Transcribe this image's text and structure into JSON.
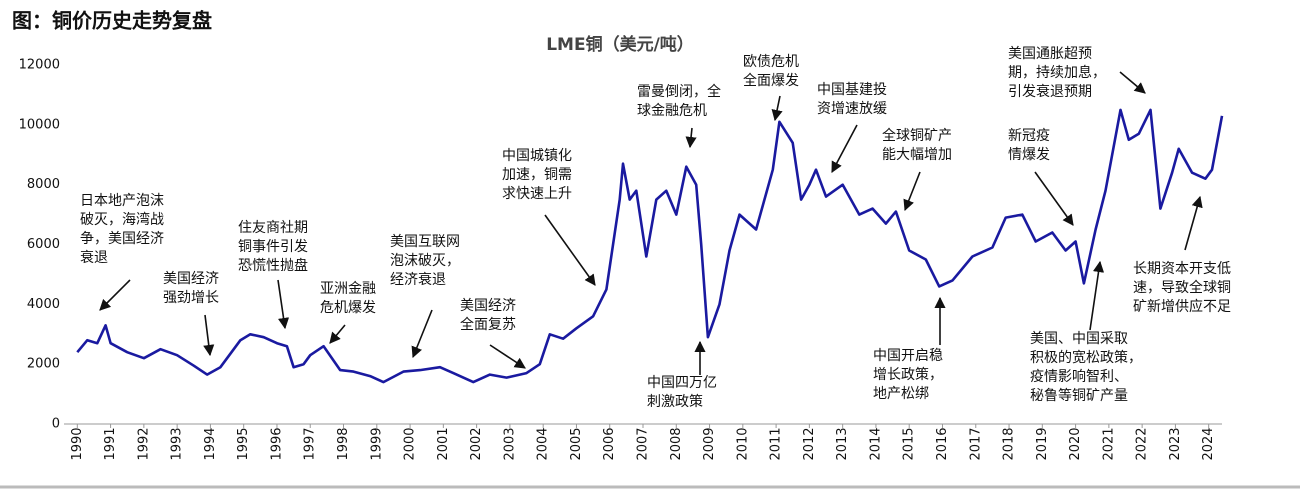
{
  "page_title": "图：铜价历史走势复盘",
  "chart_data": {
    "type": "line",
    "title": "LME铜（美元/吨）",
    "x": [
      1990.0,
      1990.3,
      1990.6,
      1990.85,
      1991.0,
      1991.5,
      1992.0,
      1992.5,
      1993.0,
      1993.5,
      1993.9,
      1994.3,
      1994.9,
      1995.2,
      1995.6,
      1996.0,
      1996.3,
      1996.5,
      1996.8,
      1997.0,
      1997.4,
      1997.9,
      1998.3,
      1998.8,
      1999.2,
      1999.8,
      2000.3,
      2000.9,
      2001.3,
      2001.9,
      2002.4,
      2002.9,
      2003.5,
      2003.9,
      2004.2,
      2004.6,
      2005.0,
      2005.5,
      2005.9,
      2006.3,
      2006.4,
      2006.6,
      2006.8,
      2007.1,
      2007.4,
      2007.7,
      2008.0,
      2008.3,
      2008.6,
      2008.75,
      2008.95,
      2009.3,
      2009.6,
      2009.9,
      2010.4,
      2010.9,
      2011.1,
      2011.5,
      2011.75,
      2012.0,
      2012.2,
      2012.5,
      2013.0,
      2013.5,
      2013.9,
      2014.3,
      2014.6,
      2015.0,
      2015.5,
      2015.9,
      2016.3,
      2016.9,
      2017.5,
      2017.9,
      2018.4,
      2018.8,
      2019.3,
      2019.7,
      2020.0,
      2020.25,
      2020.6,
      2020.9,
      2021.35,
      2021.6,
      2021.9,
      2022.25,
      2022.55,
      2022.9,
      2023.1,
      2023.5,
      2023.9,
      2024.1,
      2024.4
    ],
    "series": [
      {
        "name": "LME铜",
        "color": "#1a1aa0",
        "values": [
          2400,
          2800,
          2700,
          3300,
          2700,
          2400,
          2200,
          2500,
          2300,
          1950,
          1650,
          1900,
          2800,
          3000,
          2900,
          2700,
          2600,
          1900,
          2000,
          2300,
          2600,
          1800,
          1750,
          1600,
          1400,
          1750,
          1800,
          1900,
          1700,
          1400,
          1650,
          1550,
          1700,
          2000,
          3000,
          2850,
          3200,
          3600,
          4500,
          7500,
          8700,
          7500,
          7800,
          5600,
          7500,
          7800,
          7000,
          8600,
          8000,
          6000,
          2900,
          4000,
          5800,
          7000,
          6500,
          8500,
          10100,
          9400,
          7500,
          8000,
          8500,
          7600,
          8000,
          7000,
          7200,
          6700,
          7100,
          5800,
          5500,
          4600,
          4800,
          5600,
          5900,
          6900,
          7000,
          6100,
          6400,
          5800,
          6100,
          4700,
          6500,
          7800,
          10500,
          9500,
          9700,
          10500,
          7200,
          8400,
          9200,
          8400,
          8200,
          8500,
          10300
        ]
      }
    ],
    "xlim": [
      1989.6,
      2024.4
    ],
    "xticks": [
      1990,
      1991,
      1992,
      1993,
      1994,
      1995,
      1996,
      1997,
      1998,
      1999,
      2000,
      2001,
      2002,
      2003,
      2004,
      2005,
      2006,
      2007,
      2008,
      2009,
      2010,
      2011,
      2012,
      2013,
      2014,
      2015,
      2016,
      2017,
      2018,
      2019,
      2020,
      2021,
      2022,
      2023,
      2024
    ],
    "ylim": [
      0,
      12000
    ],
    "yticks": [
      0,
      2000,
      4000,
      6000,
      8000,
      10000,
      12000
    ],
    "grid": false,
    "annotations": [
      [
        "日本地产泡沫",
        "破灭，海湾战",
        "争，美国经济",
        "衰退"
      ],
      [
        "美国经济",
        "强劲增长"
      ],
      [
        "住友商社期",
        "铜事件引发",
        "恐慌性抛盘"
      ],
      [
        "亚洲金融",
        "危机爆发"
      ],
      [
        "美国互联网",
        "泡沫破灭，",
        "经济衰退"
      ],
      [
        "美国经济",
        "全面复苏"
      ],
      [
        "中国城镇化",
        "加速，铜需",
        "求快速上升"
      ],
      [
        "雷曼倒闭，全",
        "球金融危机"
      ],
      [
        "中国四万亿",
        "刺激政策"
      ],
      [
        "欧债危机",
        "全面爆发"
      ],
      [
        "中国基建投",
        "资增速放缓"
      ],
      [
        "全球铜矿产",
        "能大幅增加"
      ],
      [
        "中国开启稳",
        "增长政策，",
        "地产松绑"
      ],
      [
        "新冠疫",
        "情爆发"
      ],
      [
        "美国通胀超预",
        "期，持续加息，",
        "引发衰退预期"
      ],
      [
        "美国、中国采取",
        "积极的宽松政策，",
        "疫情影响智利、",
        "秘鲁等铜矿产量"
      ],
      [
        "长期资本开支低",
        "速，导致全球铜",
        "矿新增供应不足"
      ]
    ]
  }
}
